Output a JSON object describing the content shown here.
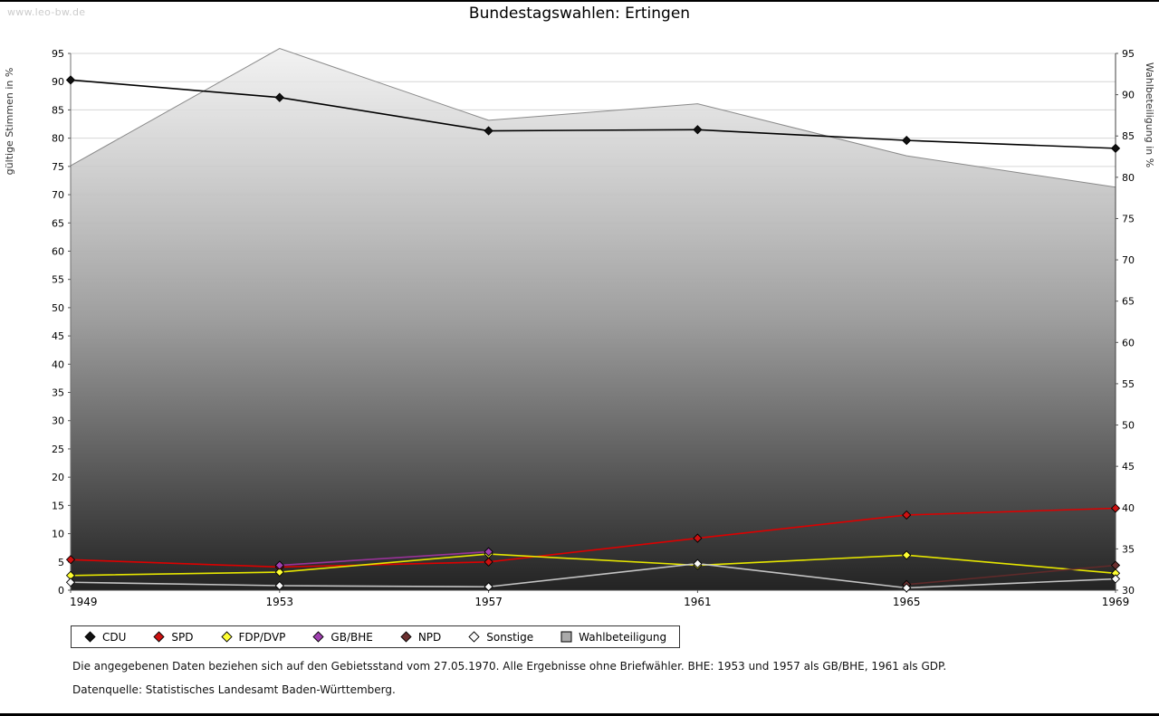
{
  "watermark": "www.leo-bw.de",
  "title": "Bundestagswahlen: Ertingen",
  "chart_data": {
    "type": "line",
    "title": "Bundestagswahlen: Ertingen",
    "categories": [
      "1949",
      "1953",
      "1957",
      "1961",
      "1965",
      "1969"
    ],
    "left_axis": {
      "label": "gültige Stimmen in %",
      "min": 0,
      "max": 95,
      "tick_step": 5
    },
    "right_axis": {
      "label": "Wahlbeteiligung in %",
      "min": 30,
      "max": 95,
      "tick_step": 5
    },
    "grid": true,
    "legend_position": "bottom-left",
    "series": [
      {
        "name": "CDU",
        "type": "line",
        "axis": "left",
        "line_color": "#000000",
        "marker_color": "#111111",
        "values": [
          90.3,
          87.2,
          81.3,
          81.5,
          79.6,
          78.2
        ]
      },
      {
        "name": "SPD",
        "type": "line",
        "axis": "left",
        "line_color": "#dd0000",
        "marker_color": "#cc1111",
        "values": [
          5.4,
          4.1,
          5.0,
          9.2,
          13.3,
          14.5
        ]
      },
      {
        "name": "FDP/DVP",
        "type": "line",
        "axis": "left",
        "line_color": "#e6e600",
        "marker_color": "#ffff33",
        "values": [
          2.6,
          3.2,
          6.4,
          4.4,
          6.2,
          3.0
        ]
      },
      {
        "name": "GB/BHE",
        "type": "line",
        "axis": "left",
        "line_color": "#993399",
        "marker_color": "#a040b0",
        "values": [
          null,
          4.4,
          6.8,
          null,
          null,
          null
        ]
      },
      {
        "name": "NPD",
        "type": "line",
        "axis": "left",
        "line_color": "#5f2a2a",
        "marker_color": "#6b3030",
        "values": [
          null,
          null,
          null,
          null,
          1.0,
          4.4
        ]
      },
      {
        "name": "Sonstige",
        "type": "line",
        "axis": "left",
        "line_color": "#c4c4c4",
        "marker_color": "#f8f8f8",
        "values": [
          1.4,
          0.8,
          0.6,
          4.7,
          0.4,
          2.0
        ]
      },
      {
        "name": "Wahlbeteiligung",
        "type": "area",
        "axis": "right",
        "line_color": "#8a8a8a",
        "area_top_color": "#f0f0f0",
        "area_mid_color": "#9e9e9e",
        "area_bottom_color": "#232323",
        "values": [
          81.4,
          95.6,
          86.9,
          88.9,
          82.6,
          78.8
        ]
      }
    ]
  },
  "footnotes": [
    "Die angegebenen Daten beziehen sich auf den Gebietsstand vom 27.05.1970. Alle Ergebnisse ohne Briefwähler. BHE: 1953 und 1957 als GB/BHE, 1961 als GDP.",
    "Datenquelle: Statistisches Landesamt Baden-Württemberg."
  ]
}
